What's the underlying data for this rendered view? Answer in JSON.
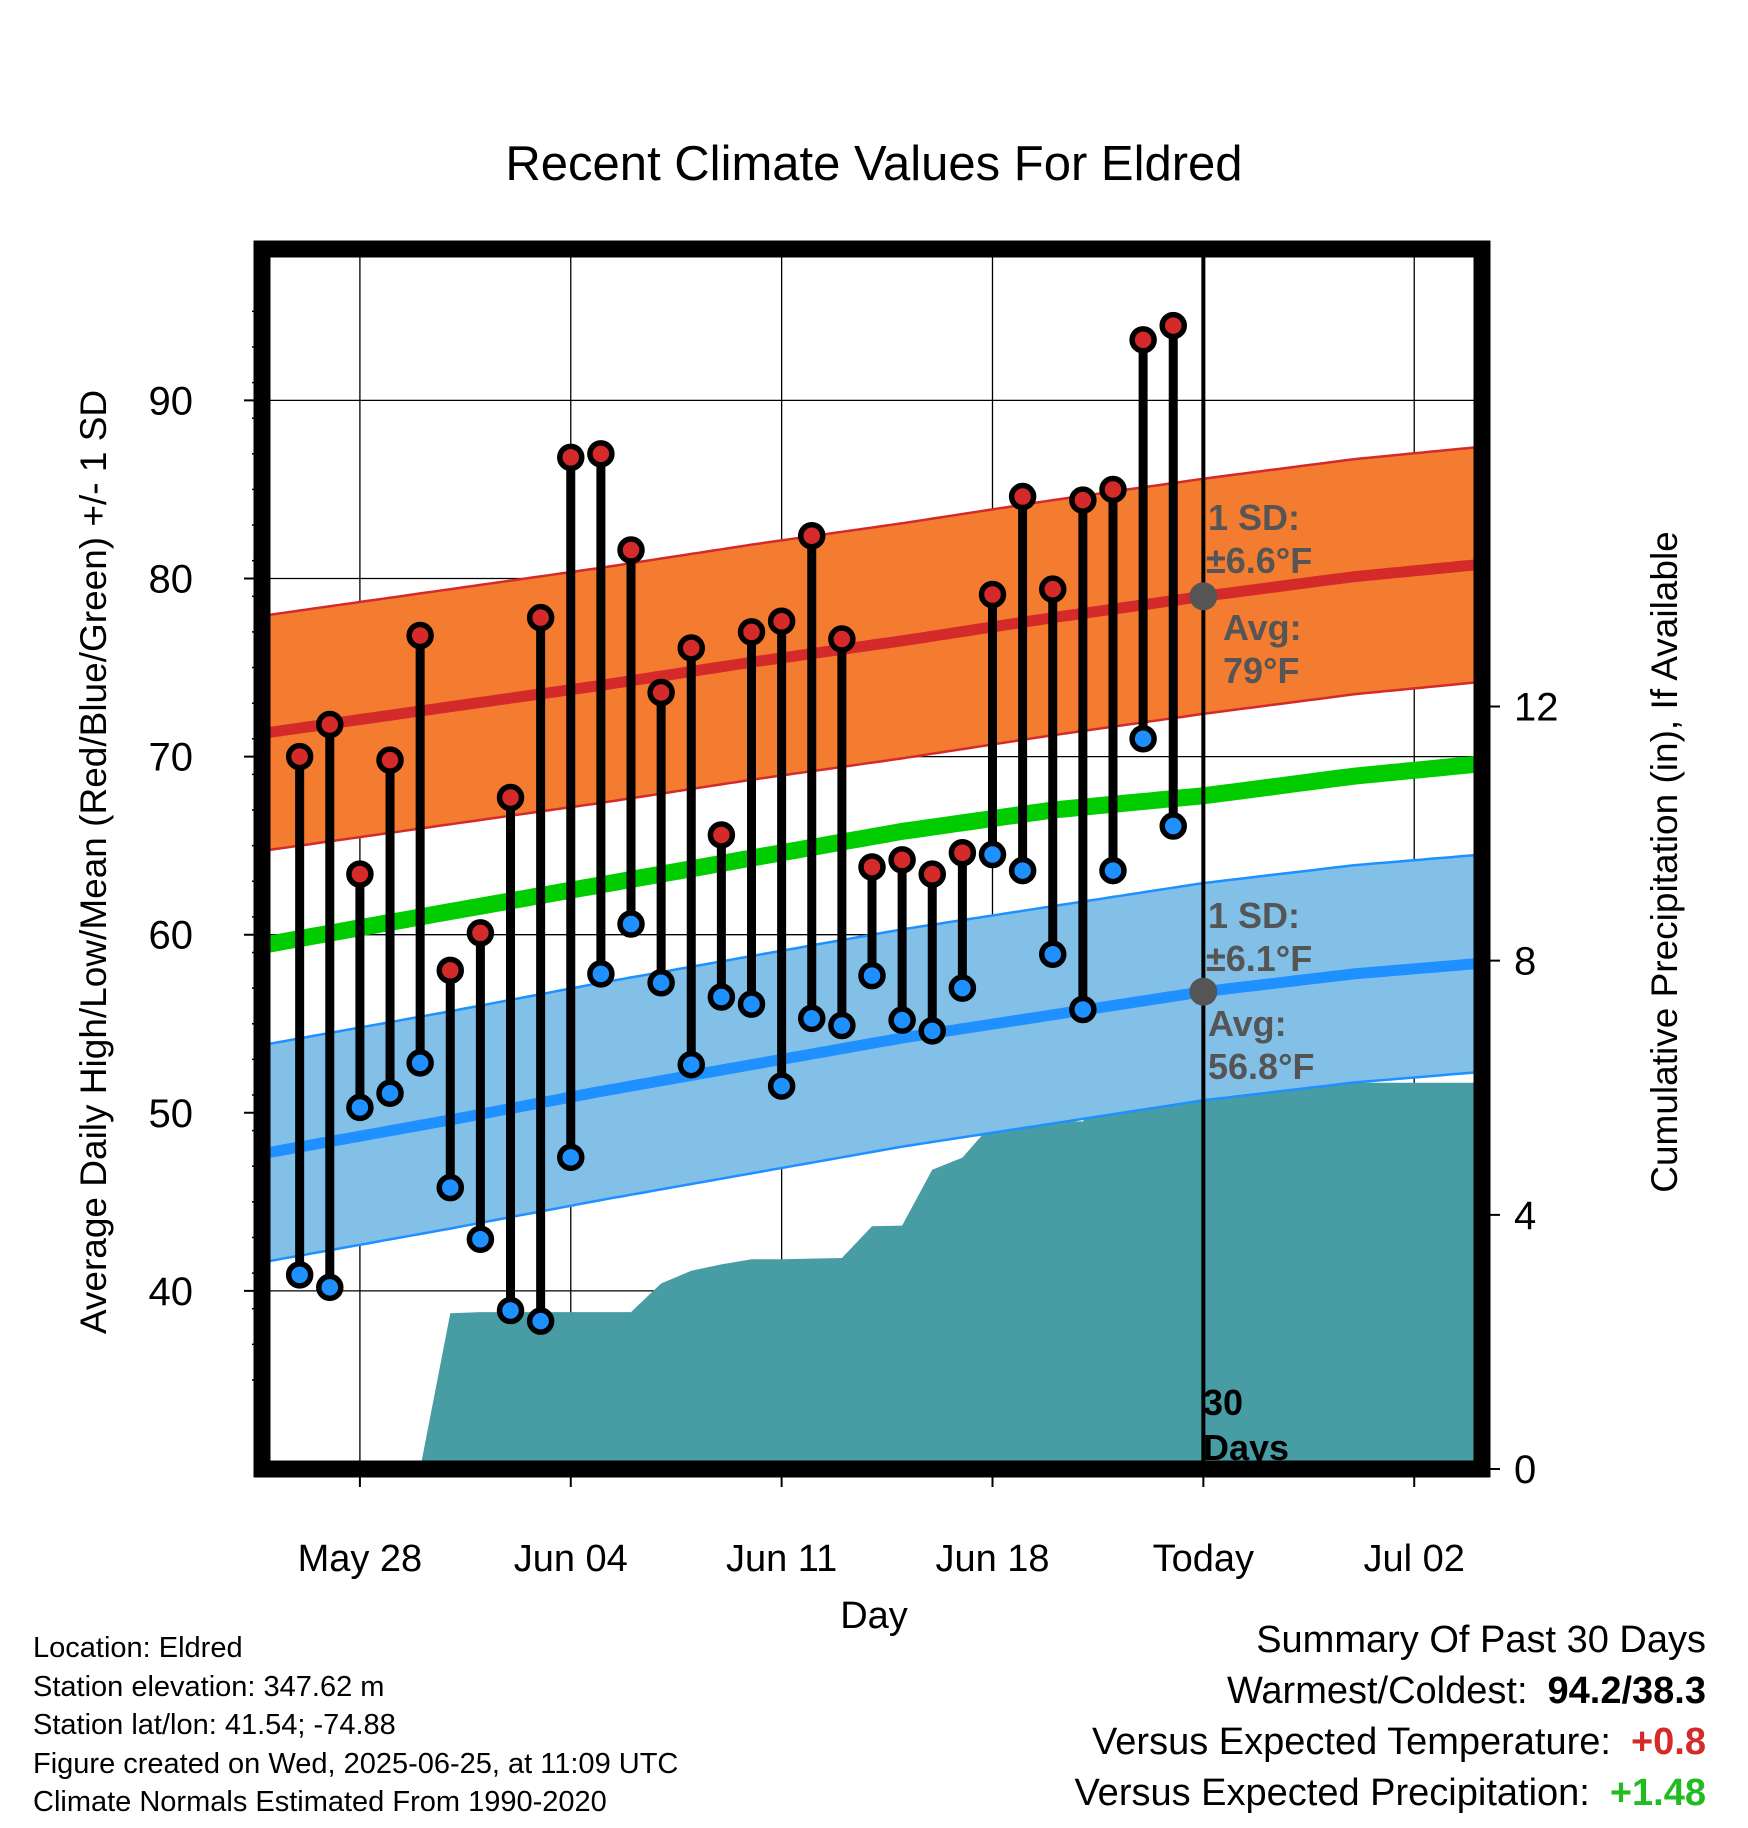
{
  "chart_data": {
    "type": "line",
    "title": "Recent Climate Values For Eldred",
    "xlabel": "Day",
    "ylabel": "Average Daily High/Low/Mean (Red/Blue/Green) +/- 1 SD",
    "y2label": "Cumulative Precipitation (in), If Available",
    "xtick_labels": [
      "May 28",
      "Jun 04",
      "Jun 11",
      "Jun 18",
      "Today",
      "Jul 02"
    ],
    "xtick_days": [
      2,
      9,
      16,
      23,
      30,
      37
    ],
    "xlim": [
      -1.25,
      39.25
    ],
    "ylim": [
      30,
      98.5
    ],
    "yticks": [
      40,
      50,
      60,
      70,
      80,
      90
    ],
    "y2lim": [
      0,
      19.2
    ],
    "y2ticks": [
      0,
      4,
      8,
      12
    ],
    "grid": true,
    "colors": {
      "high": "#d42a2a",
      "high_band": "#f47c30",
      "low": "#1e90ff",
      "low_band": "#82c0e8",
      "mean": "#00cc00",
      "precip": "#489ca4",
      "annotation": "#555555"
    },
    "normals": {
      "days": [
        -1.25,
        5,
        10,
        15,
        20,
        25,
        30,
        35,
        39.25
      ],
      "high_avg": [
        71.3,
        72.8,
        74.0,
        75.3,
        76.5,
        77.8,
        79.0,
        80.1,
        80.8
      ],
      "low_avg": [
        47.7,
        49.6,
        51.2,
        52.7,
        54.2,
        55.5,
        56.8,
        57.8,
        58.4
      ],
      "mean_avg": [
        59.4,
        61.3,
        62.8,
        64.3,
        65.8,
        67.0,
        67.8,
        68.9,
        69.6
      ]
    },
    "high_sd": 6.6,
    "low_sd": 6.1,
    "observations": {
      "days": [
        0,
        1,
        2,
        3,
        4,
        5,
        6,
        7,
        8,
        9,
        10,
        11,
        12,
        13,
        14,
        15,
        16,
        17,
        18,
        19,
        20,
        21,
        22,
        23,
        24,
        25,
        26,
        27,
        28,
        29
      ],
      "high": [
        70.0,
        71.8,
        63.4,
        69.8,
        76.8,
        58.0,
        60.1,
        67.7,
        77.8,
        86.8,
        87.0,
        81.6,
        73.6,
        76.1,
        65.6,
        77.0,
        77.6,
        82.4,
        76.6,
        63.8,
        64.2,
        63.4,
        64.6,
        79.1,
        84.6,
        79.4,
        84.4,
        85.0,
        93.4,
        94.2
      ],
      "low": [
        40.9,
        40.2,
        50.3,
        51.1,
        52.8,
        45.8,
        42.9,
        38.9,
        38.3,
        47.5,
        57.8,
        60.6,
        57.3,
        52.7,
        56.5,
        56.1,
        51.5,
        55.3,
        54.9,
        57.7,
        55.2,
        54.6,
        57.0,
        64.5,
        63.6,
        58.9,
        55.8,
        63.6,
        71.0,
        66.1
      ]
    },
    "precipitation": {
      "days": [
        4,
        5,
        6,
        11,
        12,
        13,
        14,
        15,
        16,
        18,
        19,
        20,
        21,
        22,
        23,
        24,
        25,
        26,
        27,
        30
      ],
      "cumulative": [
        0,
        2.45,
        2.47,
        2.47,
        2.92,
        3.12,
        3.22,
        3.3,
        3.3,
        3.32,
        3.82,
        3.83,
        4.71,
        4.9,
        5.44,
        5.47,
        5.47,
        5.47,
        6.08,
        6.08
      ]
    },
    "annotations": {
      "high_sd_label": "1 SD:",
      "high_sd_value": "±6.6°F",
      "high_avg_label": "Avg:",
      "high_avg_value": "79°F",
      "low_sd_label": "1 SD:",
      "low_sd_value": "±6.1°F",
      "low_avg_label": "Avg:",
      "low_avg_value": "56.8°F",
      "days_line1": "30",
      "days_line2": "Days"
    }
  },
  "info": {
    "location": "Location: Eldred",
    "elevation": "Station elevation: 347.62 m",
    "latlon": "Station lat/lon: 41.54; -74.88",
    "created": "Figure created on Wed, 2025-06-25, at 11:09 UTC",
    "normals": "Climate Normals Estimated From 1990-2020"
  },
  "summary": {
    "title": "Summary Of Past 30 Days",
    "warmest_label": "Warmest/Coldest:",
    "warmest_value": "94.2/38.3",
    "temp_label": "Versus Expected Temperature:",
    "temp_value": "+0.8",
    "temp_color": "#d42a2a",
    "precip_label": "Versus Expected Precipitation:",
    "precip_value": "+1.48",
    "precip_color": "#22bb22"
  }
}
